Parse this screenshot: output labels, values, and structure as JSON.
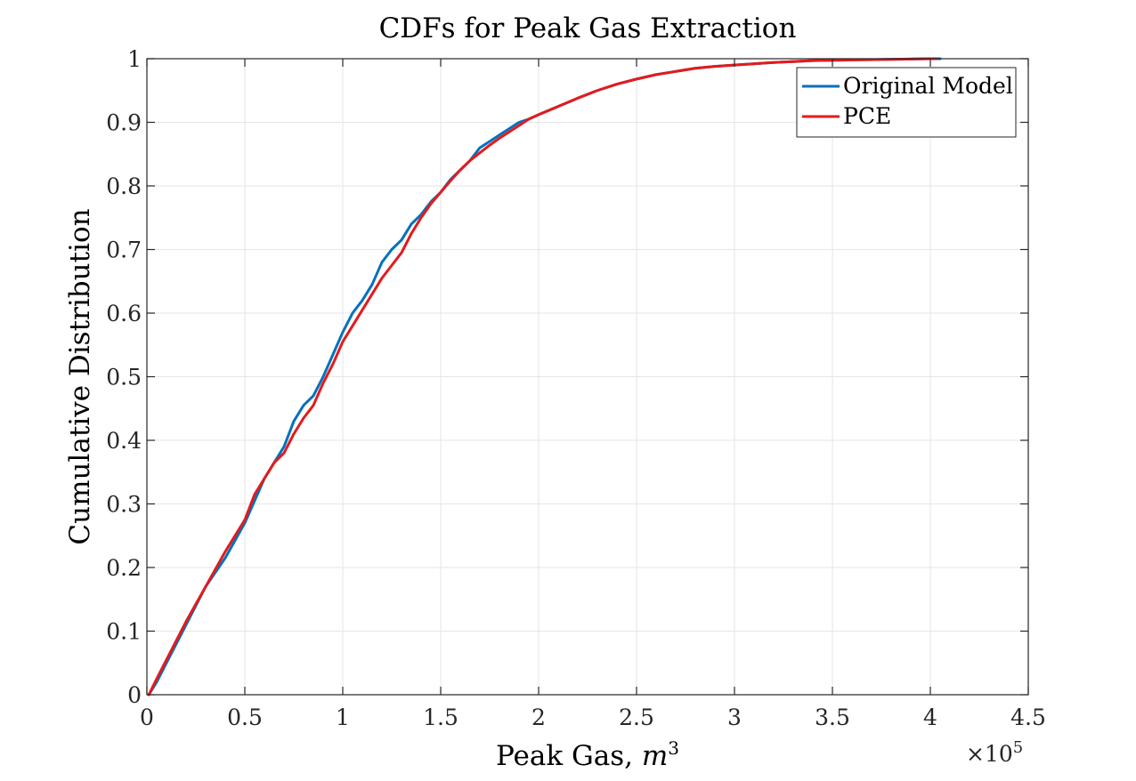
{
  "chart_data": {
    "type": "line",
    "title": "CDFs for Peak Gas Extraction",
    "xlabel": "Peak Gas, ",
    "xlabel_math": "m",
    "xlabel_exp": "3",
    "ylabel": "Cumulative Distribution",
    "xlim": [
      0,
      450000
    ],
    "ylim": [
      0,
      1
    ],
    "x_multiplier_base": "×10",
    "x_multiplier_exp": "5",
    "x_scale": 100000,
    "xticks": [
      0,
      0.5,
      1,
      1.5,
      2,
      2.5,
      3,
      3.5,
      4,
      4.5
    ],
    "xtick_labels": [
      "0",
      "0.5",
      "1",
      "1.5",
      "2",
      "2.5",
      "3",
      "3.5",
      "4",
      "4.5"
    ],
    "yticks": [
      0,
      0.1,
      0.2,
      0.3,
      0.4,
      0.5,
      0.6,
      0.7,
      0.8,
      0.9,
      1
    ],
    "ytick_labels": [
      "0",
      "0.1",
      "0.2",
      "0.3",
      "0.4",
      "0.5",
      "0.6",
      "0.7",
      "0.8",
      "0.9",
      "1"
    ],
    "grid": true,
    "legend_position": "top-right",
    "series": [
      {
        "name": "Original Model",
        "color": "#0072BD",
        "x": [
          1000,
          5000,
          10000,
          20000,
          30000,
          40000,
          50000,
          55000,
          60000,
          65000,
          70000,
          75000,
          80000,
          85000,
          90000,
          95000,
          100000,
          105000,
          110000,
          115000,
          120000,
          125000,
          130000,
          135000,
          140000,
          145000,
          150000,
          155000,
          160000,
          165000,
          170000,
          175000,
          180000,
          185000,
          190000,
          195000,
          200000,
          210000,
          220000,
          230000,
          240000,
          250000,
          260000,
          270000,
          280000,
          290000,
          300000,
          320000,
          340000,
          360000,
          380000,
          400000,
          405000
        ],
        "y": [
          0.0,
          0.02,
          0.05,
          0.11,
          0.17,
          0.215,
          0.27,
          0.305,
          0.34,
          0.365,
          0.39,
          0.43,
          0.455,
          0.47,
          0.5,
          0.535,
          0.57,
          0.6,
          0.62,
          0.645,
          0.68,
          0.7,
          0.715,
          0.74,
          0.755,
          0.775,
          0.79,
          0.81,
          0.825,
          0.84,
          0.86,
          0.87,
          0.88,
          0.89,
          0.9,
          0.905,
          0.912,
          0.925,
          0.938,
          0.95,
          0.96,
          0.968,
          0.975,
          0.98,
          0.985,
          0.988,
          0.99,
          0.994,
          0.997,
          0.998,
          0.999,
          1.0,
          1.0
        ]
      },
      {
        "name": "PCE",
        "color": "#E41A1C",
        "x": [
          1000,
          5000,
          10000,
          20000,
          30000,
          40000,
          50000,
          55000,
          60000,
          65000,
          70000,
          75000,
          80000,
          85000,
          90000,
          95000,
          100000,
          105000,
          110000,
          115000,
          120000,
          125000,
          130000,
          135000,
          140000,
          145000,
          150000,
          155000,
          160000,
          165000,
          170000,
          175000,
          180000,
          185000,
          190000,
          195000,
          200000,
          210000,
          220000,
          230000,
          240000,
          250000,
          260000,
          270000,
          280000,
          290000,
          300000,
          320000,
          340000,
          360000,
          380000,
          400000,
          403000
        ],
        "y": [
          0.0,
          0.025,
          0.055,
          0.115,
          0.17,
          0.225,
          0.275,
          0.315,
          0.34,
          0.365,
          0.38,
          0.41,
          0.435,
          0.455,
          0.49,
          0.52,
          0.555,
          0.58,
          0.605,
          0.63,
          0.655,
          0.675,
          0.695,
          0.725,
          0.75,
          0.772,
          0.79,
          0.808,
          0.825,
          0.84,
          0.852,
          0.864,
          0.875,
          0.885,
          0.895,
          0.905,
          0.912,
          0.925,
          0.938,
          0.95,
          0.96,
          0.968,
          0.975,
          0.98,
          0.985,
          0.988,
          0.99,
          0.994,
          0.997,
          0.998,
          0.999,
          1.0,
          1.0
        ]
      }
    ]
  }
}
